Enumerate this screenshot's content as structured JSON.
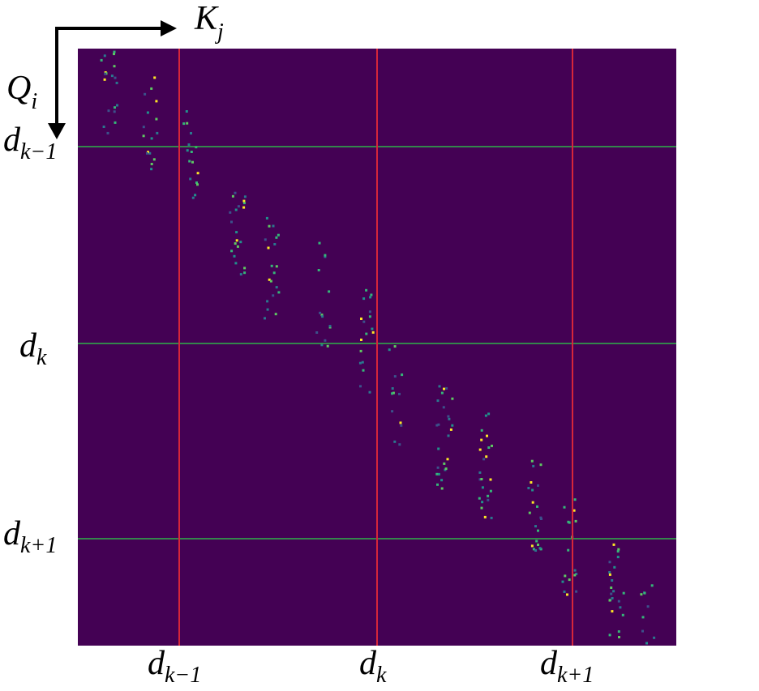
{
  "axes": {
    "columns": {
      "base": "K",
      "sub": "j"
    },
    "rows": {
      "base": "Q",
      "sub": "i"
    }
  },
  "boundaries": [
    {
      "base": "d",
      "sub": "k−1"
    },
    {
      "base": "d",
      "sub": "k"
    },
    {
      "base": "d",
      "sub": "k+1"
    }
  ]
}
